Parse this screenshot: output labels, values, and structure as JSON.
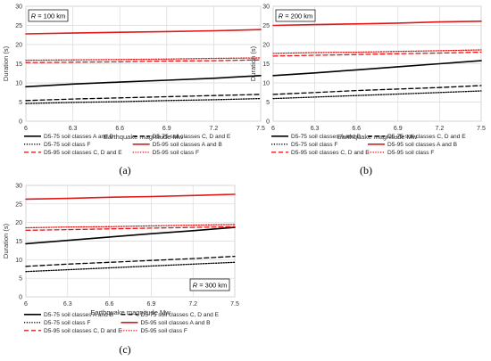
{
  "chart_data": [
    {
      "type": "line",
      "panel_label": "(a)",
      "annotation": "R = 100 km",
      "annotation_corner": "top-left",
      "xlabel": "Earthquake magnitude Mw",
      "ylabel": "Duration (s)",
      "xlim": [
        6,
        7.5
      ],
      "ylim": [
        0,
        30
      ],
      "xticks": [
        "6",
        "6.3",
        "6.6",
        "6.9",
        "7.2",
        "7.5"
      ],
      "yticks": [
        "0",
        "5",
        "10",
        "15",
        "20",
        "25",
        "30"
      ],
      "grid": true,
      "legend_position": "bottom",
      "x": [
        6,
        6.3,
        6.6,
        6.9,
        7.2,
        7.5
      ],
      "series": [
        {
          "name": "D5-75 soil classes A and B",
          "color": "#000000",
          "style": "solid",
          "values": [
            9.0,
            9.7,
            10.2,
            10.7,
            11.2,
            11.9
          ]
        },
        {
          "name": "D5-75 soil classes C, D and E",
          "color": "#000000",
          "style": "dashed",
          "values": [
            5.4,
            5.8,
            6.1,
            6.4,
            6.7,
            7.0
          ]
        },
        {
          "name": "D5-75 soil class F",
          "color": "#000000",
          "style": "dotted",
          "values": [
            4.6,
            4.9,
            5.1,
            5.4,
            5.6,
            5.9
          ]
        },
        {
          "name": "D5-95 soil classes A and B",
          "color": "#e01a1a",
          "style": "solid",
          "values": [
            22.8,
            23.0,
            23.2,
            23.4,
            23.6,
            23.9
          ]
        },
        {
          "name": "D5-95 soil classes C, D and E",
          "color": "#e01a1a",
          "style": "dashed",
          "values": [
            15.3,
            15.4,
            15.5,
            15.7,
            15.8,
            16.0
          ]
        },
        {
          "name": "D5-95 soil class F",
          "color": "#e01a1a",
          "style": "dotted",
          "values": [
            15.9,
            16.0,
            16.1,
            16.2,
            16.4,
            16.5
          ]
        }
      ]
    },
    {
      "type": "line",
      "panel_label": "(b)",
      "annotation": "R = 200 km",
      "annotation_corner": "top-left",
      "xlabel": "Earthquake magnitude Mw",
      "ylabel": "Duration (s)",
      "xlim": [
        6,
        7.5
      ],
      "ylim": [
        0,
        30
      ],
      "xticks": [
        "6",
        "6.3",
        "6.6",
        "6.9",
        "7.2",
        "7.5"
      ],
      "yticks": [
        "0",
        "5",
        "10",
        "15",
        "20",
        "25",
        "30"
      ],
      "grid": true,
      "legend_position": "bottom",
      "x": [
        6,
        6.3,
        6.6,
        6.9,
        7.2,
        7.5
      ],
      "series": [
        {
          "name": "D5-75 soil classes A and B",
          "color": "#000000",
          "style": "solid",
          "values": [
            11.9,
            12.6,
            13.4,
            14.2,
            15.0,
            15.8
          ]
        },
        {
          "name": "D5-75 soil classes C, D and E",
          "color": "#000000",
          "style": "dashed",
          "values": [
            7.0,
            7.5,
            8.0,
            8.4,
            8.8,
            9.3
          ]
        },
        {
          "name": "D5-75 soil class F",
          "color": "#000000",
          "style": "dotted",
          "values": [
            5.9,
            6.3,
            6.7,
            7.1,
            7.5,
            7.9
          ]
        },
        {
          "name": "D5-95 soil classes A and B",
          "color": "#e01a1a",
          "style": "solid",
          "values": [
            25.0,
            25.2,
            25.4,
            25.6,
            25.9,
            26.1
          ]
        },
        {
          "name": "D5-95 soil classes C, D and E",
          "color": "#e01a1a",
          "style": "dashed",
          "values": [
            17.0,
            17.2,
            17.4,
            17.6,
            17.8,
            18.0
          ]
        },
        {
          "name": "D5-95 soil class F",
          "color": "#e01a1a",
          "style": "dotted",
          "values": [
            17.7,
            17.9,
            18.0,
            18.2,
            18.4,
            18.6
          ]
        }
      ]
    },
    {
      "type": "line",
      "panel_label": "(c)",
      "annotation": "R = 300 km",
      "annotation_corner": "bottom-right",
      "xlabel": "Earthquake magnitude Mw",
      "ylabel": "Duration (s)",
      "xlim": [
        6,
        7.5
      ],
      "ylim": [
        0,
        30
      ],
      "xticks": [
        "6",
        "6.3",
        "6.6",
        "6.9",
        "7.2",
        "7.5"
      ],
      "yticks": [
        "0",
        "5",
        "10",
        "15",
        "20",
        "25",
        "30"
      ],
      "grid": true,
      "legend_position": "bottom",
      "x": [
        6,
        6.3,
        6.6,
        6.9,
        7.2,
        7.5
      ],
      "series": [
        {
          "name": "D5-75 soil classes A and B",
          "color": "#000000",
          "style": "solid",
          "values": [
            14.3,
            15.2,
            16.1,
            17.0,
            17.8,
            18.7
          ]
        },
        {
          "name": "D5-75 soil classes C, D and E",
          "color": "#000000",
          "style": "dashed",
          "values": [
            8.2,
            8.8,
            9.3,
            9.8,
            10.3,
            10.9
          ]
        },
        {
          "name": "D5-75 soil class F",
          "color": "#000000",
          "style": "dotted",
          "values": [
            6.8,
            7.3,
            7.8,
            8.3,
            8.8,
            9.3
          ]
        },
        {
          "name": "D5-95 soil classes A and B",
          "color": "#e01a1a",
          "style": "solid",
          "values": [
            26.3,
            26.5,
            26.8,
            27.0,
            27.3,
            27.6
          ]
        },
        {
          "name": "D5-95 soil classes C, D and E",
          "color": "#e01a1a",
          "style": "dashed",
          "values": [
            17.9,
            18.1,
            18.3,
            18.5,
            18.7,
            18.9
          ]
        },
        {
          "name": "D5-95 soil class F",
          "color": "#e01a1a",
          "style": "dotted",
          "values": [
            18.6,
            18.8,
            18.9,
            19.1,
            19.3,
            19.5
          ]
        }
      ]
    }
  ]
}
